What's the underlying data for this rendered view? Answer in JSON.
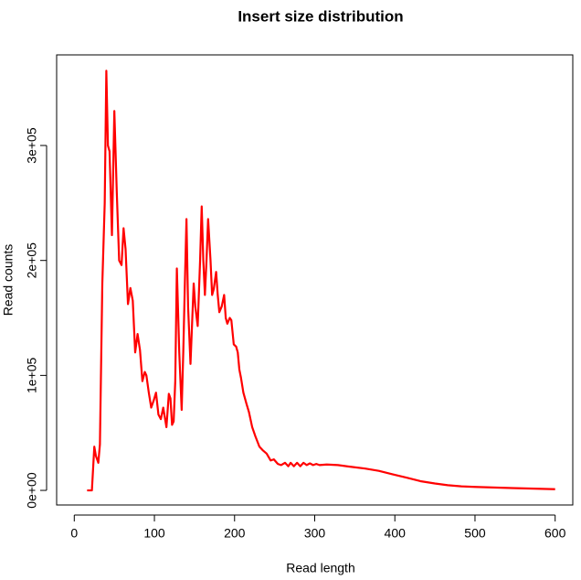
{
  "chart_data": {
    "type": "line",
    "title": "Insert size distribution",
    "x_label": "Read length",
    "y_label": "Read counts",
    "x": [
      16,
      22,
      25,
      27,
      30,
      32,
      35,
      38,
      40,
      42,
      44,
      47,
      50,
      53,
      56,
      59,
      61.5,
      64,
      67,
      70,
      73,
      76,
      79,
      82,
      85,
      88,
      90,
      93,
      96,
      99,
      102,
      105,
      108,
      111,
      115,
      118,
      120,
      122,
      124,
      126,
      128,
      131,
      134,
      136,
      138,
      140,
      142,
      145,
      147,
      149,
      151,
      154,
      157,
      159,
      161,
      163,
      165,
      167,
      170,
      172,
      174,
      177,
      179,
      181,
      184,
      187,
      189,
      191,
      194,
      196,
      199,
      202,
      204,
      206,
      208,
      211,
      215,
      218,
      222,
      226,
      231,
      235,
      240,
      245,
      249,
      254,
      258,
      263,
      267,
      270,
      274,
      278,
      282,
      286,
      290,
      294,
      298,
      302,
      306,
      315,
      329,
      345,
      363,
      380,
      397,
      415,
      432,
      450,
      466,
      483,
      500,
      546,
      600
    ],
    "series": [
      {
        "name": "Read counts",
        "color": "#ff0000",
        "values": [
          0,
          0,
          38000,
          30000,
          24000,
          40000,
          180000,
          250000,
          365000,
          300000,
          295000,
          222000,
          330000,
          260000,
          200000,
          196000,
          228000,
          210000,
          162000,
          176000,
          165000,
          120000,
          136000,
          122000,
          95000,
          103000,
          100000,
          85000,
          72000,
          78000,
          85000,
          66000,
          62000,
          72000,
          55000,
          84000,
          80000,
          57000,
          60000,
          95000,
          193000,
          120000,
          70000,
          120000,
          180000,
          236000,
          160000,
          110000,
          145000,
          180000,
          160000,
          143000,
          200000,
          247000,
          200000,
          170000,
          200000,
          236000,
          200000,
          170000,
          175000,
          190000,
          170000,
          155000,
          160000,
          170000,
          150000,
          145000,
          150000,
          148000,
          127000,
          125000,
          120000,
          105000,
          98000,
          85000,
          75000,
          68000,
          55000,
          47000,
          38000,
          35000,
          32000,
          26000,
          27000,
          23000,
          22000,
          24000,
          21000,
          24000,
          21000,
          24000,
          21000,
          24000,
          22000,
          23500,
          22000,
          23000,
          22000,
          22500,
          22000,
          20500,
          19000,
          17000,
          14000,
          11000,
          8000,
          6000,
          4500,
          3500,
          3000,
          2000,
          1000
        ]
      }
    ],
    "xlim": [
      -22,
      622
    ],
    "ylim": [
      -12700,
      378800
    ],
    "xticks": [
      0,
      100,
      200,
      300,
      400,
      500,
      600
    ],
    "yticks": [
      {
        "value": 0,
        "label": "0e+00"
      },
      {
        "value": 100000,
        "label": "1e+05"
      },
      {
        "value": 200000,
        "label": "2e+05"
      },
      {
        "value": 300000,
        "label": "3e+05"
      }
    ]
  }
}
